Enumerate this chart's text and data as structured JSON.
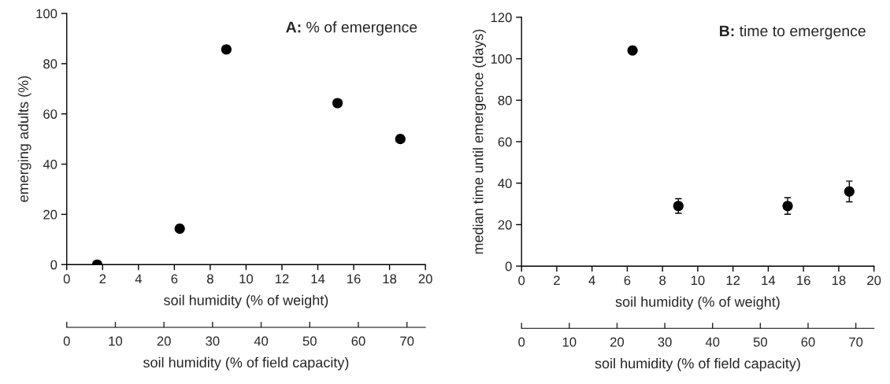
{
  "chart_data": [
    {
      "type": "scatter",
      "title": "A: % of emergence",
      "xlabel": "soil humidity (% of weight)",
      "ylabel": "emerging adults (%)",
      "x2label": "soil humidity (% of field capacity)",
      "x": [
        1.7,
        6.3,
        8.9,
        15.1,
        18.6
      ],
      "series": [
        {
          "color": "#000000",
          "values": [
            0,
            14.3,
            85.7,
            64.3,
            50
          ]
        }
      ],
      "xlim": [
        0,
        20
      ],
      "xticks": [
        0,
        2,
        4,
        6,
        8,
        10,
        12,
        14,
        16,
        18,
        20
      ],
      "ylim": [
        0,
        100
      ],
      "yticks": [
        0,
        20,
        40,
        60,
        80,
        100
      ],
      "x2lim": [
        0,
        73.8
      ],
      "x2ticks": [
        0,
        10,
        20,
        30,
        40,
        50,
        60,
        70
      ],
      "marker": "circle",
      "grid": false
    },
    {
      "type": "scatter",
      "title": "B: time to emergence",
      "xlabel": "soil humidity (% of weight)",
      "ylabel": "median time until emergence (days)",
      "x2label": "soil humidity (% of field capacity)",
      "x": [
        6.3,
        8.9,
        15.1,
        18.6
      ],
      "series": [
        {
          "color": "#000000",
          "values": [
            104,
            29,
            29,
            36
          ],
          "errors": [
            null,
            [
              25.5,
              32.5
            ],
            [
              25,
              33
            ],
            [
              31,
              41
            ]
          ]
        }
      ],
      "xlim": [
        0,
        20
      ],
      "xticks": [
        0,
        2,
        4,
        6,
        8,
        10,
        12,
        14,
        16,
        18,
        20
      ],
      "ylim": [
        0,
        120
      ],
      "yticks": [
        0,
        20,
        40,
        60,
        80,
        100,
        120
      ],
      "x2lim": [
        0,
        73.8
      ],
      "x2ticks": [
        0,
        10,
        20,
        30,
        40,
        50,
        60,
        70
      ],
      "marker": "circle",
      "grid": false
    }
  ]
}
